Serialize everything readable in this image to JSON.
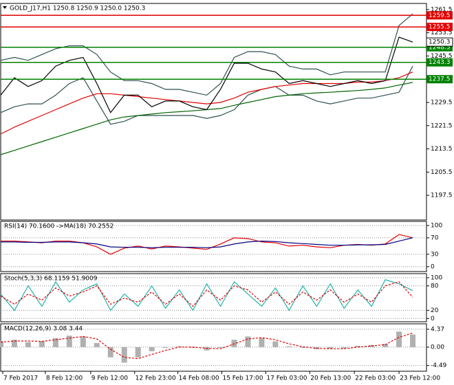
{
  "chart_data": [
    {
      "type": "line",
      "title": "GOLD_J17,H1  1250.8 1250.9 1250.0 1250.3",
      "x": [
        0,
        1,
        2,
        3,
        4,
        5,
        6,
        7,
        8,
        9,
        10,
        11,
        12,
        13,
        14,
        15,
        16,
        17,
        18,
        19,
        20,
        21,
        22,
        23,
        24,
        25,
        26,
        27,
        28,
        29,
        30
      ],
      "xlim": [
        0,
        31
      ],
      "xticks": [
        {
          "value": 0.15,
          "label": "7 Feb 2017"
        },
        {
          "value": 3.25,
          "label": "8 Feb 12:00"
        },
        {
          "value": 6.55,
          "label": "9 Feb 12:00"
        },
        {
          "value": 9.75,
          "label": "12 Feb 23:00"
        },
        {
          "value": 12.9,
          "label": "14 Feb 08:00"
        },
        {
          "value": 16.1,
          "label": "15 Feb 17:00"
        },
        {
          "value": 19.3,
          "label": "17 Feb 03:00"
        },
        {
          "value": 22.5,
          "label": "20 Feb 13:00"
        },
        {
          "value": 25.75,
          "label": "22 Feb 03:00"
        },
        {
          "value": 29,
          "label": "23 Feb 12:00"
        }
      ],
      "ylim": [
        1189,
        1263.6
      ],
      "yticks": [
        1197.5,
        1205.5,
        1213.5,
        1221.5,
        1229.5,
        1237.5,
        1245.5,
        1253.5,
        1261.5
      ],
      "grid": false,
      "series": [
        {
          "color": "#2f4f4f",
          "values": [
            1244,
            1245,
            1244,
            1246,
            1248,
            1249,
            1249,
            1246,
            1240,
            1237,
            1237,
            1236,
            1234,
            1234,
            1233,
            1232,
            1236,
            1245,
            1247,
            1247,
            1246,
            1242,
            1241,
            1241,
            1239,
            1240,
            1240,
            1240,
            1240,
            1256,
            1260
          ]
        },
        {
          "color": "#2f4f4f",
          "values": [
            1226,
            1228,
            1229,
            1229,
            1232,
            1236,
            1238,
            1230,
            1222,
            1223,
            1225,
            1225,
            1225,
            1225,
            1225,
            1224,
            1225,
            1227,
            1232,
            1234,
            1235,
            1232,
            1232,
            1230,
            1229,
            1230,
            1231,
            1231,
            1232,
            1233,
            1242
          ]
        },
        {
          "color": "#006400",
          "values": [
            1211.5,
            1213,
            1214.5,
            1216,
            1217.5,
            1219,
            1220.5,
            1222,
            1223.5,
            1224.5,
            1225,
            1225.5,
            1226,
            1226.3,
            1226.6,
            1227,
            1227.4,
            1228.5,
            1229.5,
            1230.5,
            1231.5,
            1232,
            1232.5,
            1232.8,
            1233,
            1233.3,
            1233.6,
            1234,
            1234.5,
            1235.5,
            1236.4
          ]
        },
        {
          "color": "#e00000",
          "values": [
            1218.6,
            1221,
            1223,
            1225,
            1227,
            1229,
            1231,
            1232.5,
            1232.5,
            1232,
            1231.5,
            1231,
            1230.5,
            1230,
            1229.5,
            1229,
            1229.5,
            1231,
            1233,
            1234,
            1235,
            1235.5,
            1236,
            1236,
            1236,
            1236,
            1236.5,
            1236.5,
            1237,
            1238,
            1240
          ]
        },
        {
          "color": "#000000",
          "values": [
            1232,
            1238,
            1235,
            1237,
            1242,
            1244,
            1245,
            1236,
            1226,
            1232,
            1232,
            1228,
            1230,
            1230,
            1228,
            1227,
            1234,
            1243,
            1243,
            1241,
            1240,
            1236,
            1237,
            1236,
            1235,
            1236,
            1237,
            1236,
            1237,
            1252,
            1250.3
          ]
        }
      ],
      "hlines": [
        {
          "value": 1259.5,
          "color": "#e00000"
        },
        {
          "value": 1255.5,
          "color": "#e00000"
        },
        {
          "value": 1248.5,
          "color": "#008000"
        },
        {
          "value": 1243.3,
          "color": "#008000"
        },
        {
          "value": 1237.5,
          "color": "#008000"
        }
      ],
      "price_label": 1250.3
    },
    {
      "type": "line",
      "title": "RSI(14) 70.1600 ->MA(18) 70.2552",
      "ylim": [
        -12,
        110
      ],
      "yticks": [
        100,
        70,
        30,
        0
      ],
      "grid": true,
      "series": [
        {
          "color": "#e00000",
          "values": [
            62,
            62,
            60,
            58,
            62,
            62,
            58,
            48,
            30,
            45,
            50,
            43,
            50,
            48,
            45,
            42,
            55,
            70,
            68,
            60,
            58,
            50,
            52,
            48,
            46,
            52,
            54,
            52,
            55,
            78,
            70.16
          ]
        },
        {
          "color": "#000080",
          "values": [
            60,
            60,
            59,
            59,
            60,
            60,
            58,
            55,
            48,
            47,
            47,
            46,
            47,
            47,
            47,
            46,
            48,
            55,
            60,
            62,
            61,
            58,
            56,
            54,
            52,
            52,
            53,
            53,
            54,
            62,
            70.2552
          ]
        }
      ]
    },
    {
      "type": "line",
      "title": "Stoch(5,3,3) 68.1159 51.9009",
      "ylim": [
        -8,
        110
      ],
      "yticks": [
        100,
        80,
        20,
        0
      ],
      "grid": true,
      "series": [
        {
          "color": "#20b2aa",
          "values": [
            60,
            20,
            80,
            30,
            90,
            40,
            70,
            85,
            20,
            60,
            30,
            80,
            25,
            70,
            20,
            85,
            30,
            90,
            60,
            30,
            75,
            20,
            80,
            30,
            85,
            25,
            70,
            30,
            95,
            85,
            68.1159
          ]
        },
        {
          "color": "#e00000",
          "dash": true,
          "values": [
            55,
            35,
            60,
            45,
            75,
            55,
            65,
            80,
            35,
            50,
            40,
            65,
            35,
            60,
            30,
            70,
            45,
            80,
            70,
            40,
            65,
            35,
            65,
            45,
            70,
            40,
            60,
            40,
            80,
            90,
            51.9009
          ]
        }
      ]
    },
    {
      "type": "macd",
      "title": "MACD(12,26,9) 3.08 3.44",
      "ylim": [
        -5.9,
        5.7
      ],
      "yticks": [
        4.37,
        {
          "value": 0,
          "label": "0.00"
        },
        -4.49
      ],
      "grid": true,
      "series": [
        {
          "color": "#b0b0b0",
          "histogram": true,
          "values": [
            1.5,
            1.8,
            1.2,
            1.5,
            2.2,
            2.8,
            2.6,
            1.0,
            -2.5,
            -3.8,
            -2.5,
            -1.0,
            -0.2,
            0.2,
            -0.2,
            -0.8,
            -0.2,
            1.8,
            2.6,
            2.2,
            1.4,
            0.2,
            -0.2,
            -0.5,
            -0.4,
            -0.3,
            0.3,
            0.5,
            0.8,
            3.8,
            3.08
          ]
        },
        {
          "color": "#e00000",
          "dash": true,
          "values": [
            1.2,
            1.5,
            1.5,
            1.4,
            1.8,
            2.2,
            2.6,
            2.0,
            -0.5,
            -2.5,
            -2.8,
            -1.8,
            -0.8,
            0,
            0,
            -0.3,
            -0.4,
            0.8,
            2.0,
            2.3,
            1.8,
            0.8,
            0.1,
            -0.3,
            -0.4,
            -0.4,
            0,
            0.3,
            0.6,
            2.4,
            3.44
          ]
        }
      ]
    }
  ]
}
